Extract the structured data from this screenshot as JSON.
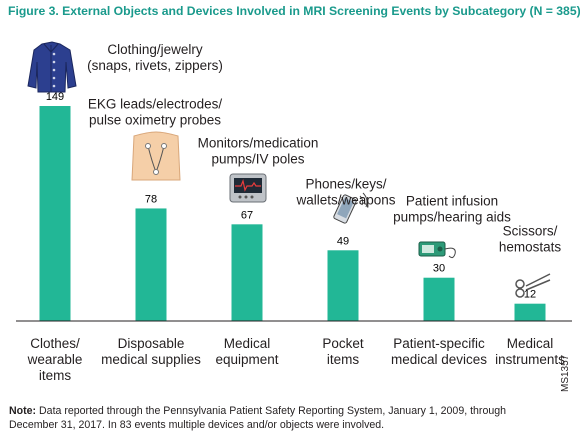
{
  "title": "Figure 3. External Objects and Devices Involved in MRI Screening Events by Subcategory (N = 385)",
  "chart_data": {
    "type": "bar",
    "categories": [
      "Clothes/ wearable items",
      "Disposable medical supplies",
      "Medical equipment",
      "Pocket items",
      "Patient-specific medical devices",
      "Medical instruments"
    ],
    "values": [
      149,
      78,
      67,
      49,
      30,
      12
    ],
    "title": "Figure 3. External Objects and Devices Involved in MRI Screening Events by Subcategory (N = 385)",
    "xlabel": "",
    "ylabel": "",
    "ylim": [
      0,
      160
    ],
    "grid": false,
    "legend": "none",
    "bar_color": "#22b796",
    "annotations": [
      [
        "Clothing/jewelry",
        "(snaps, rivets, zippers)"
      ],
      [
        "EKG leads/electrodes/",
        "pulse oximetry probes"
      ],
      [
        "Monitors/medication",
        "pumps/IV poles"
      ],
      [
        "Phones/keys/",
        "wallets/weapons"
      ],
      [
        "Patient infusion",
        "pumps/hearing aids"
      ],
      [
        "Scissors/",
        "hemostats"
      ]
    ],
    "icons": [
      "jacket-icon",
      "torso-electrodes-icon",
      "monitor-icon",
      "phone-icon",
      "infusion-pump-icon",
      "scissors-icon"
    ]
  },
  "category_lines": [
    [
      "Clothes/",
      "wearable",
      "items"
    ],
    [
      "Disposable",
      "medical supplies"
    ],
    [
      "Medical",
      "equipment"
    ],
    [
      "Pocket",
      "items"
    ],
    [
      "Patient-specific",
      "medical devices"
    ],
    [
      "Medical",
      "instruments"
    ]
  ],
  "note": {
    "label": "Note:",
    "text": " Data reported through the Pennsylvania Patient Safety Reporting System, January 1, 2009, through December 31, 2017. In 83 events multiple devices and/or objects were involved."
  },
  "figure_code": "MS1357"
}
